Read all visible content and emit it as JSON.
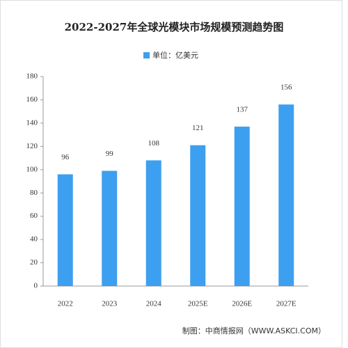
{
  "chart_data": {
    "type": "bar",
    "title": "2022-2027年全球光模块市场规模预测趋势图",
    "legend": "单位：亿美元",
    "categories": [
      "2022",
      "2023",
      "2024",
      "2025E",
      "2026E",
      "2027E"
    ],
    "values": [
      96,
      99,
      108,
      121,
      137,
      156
    ],
    "color": "#3d9ff0",
    "ylim": [
      0,
      180
    ],
    "yticks": [
      0,
      20,
      40,
      60,
      80,
      100,
      120,
      140,
      160,
      180
    ],
    "grid": false,
    "source": "制图：中商情报网（WWW.ASKCI.COM）"
  }
}
